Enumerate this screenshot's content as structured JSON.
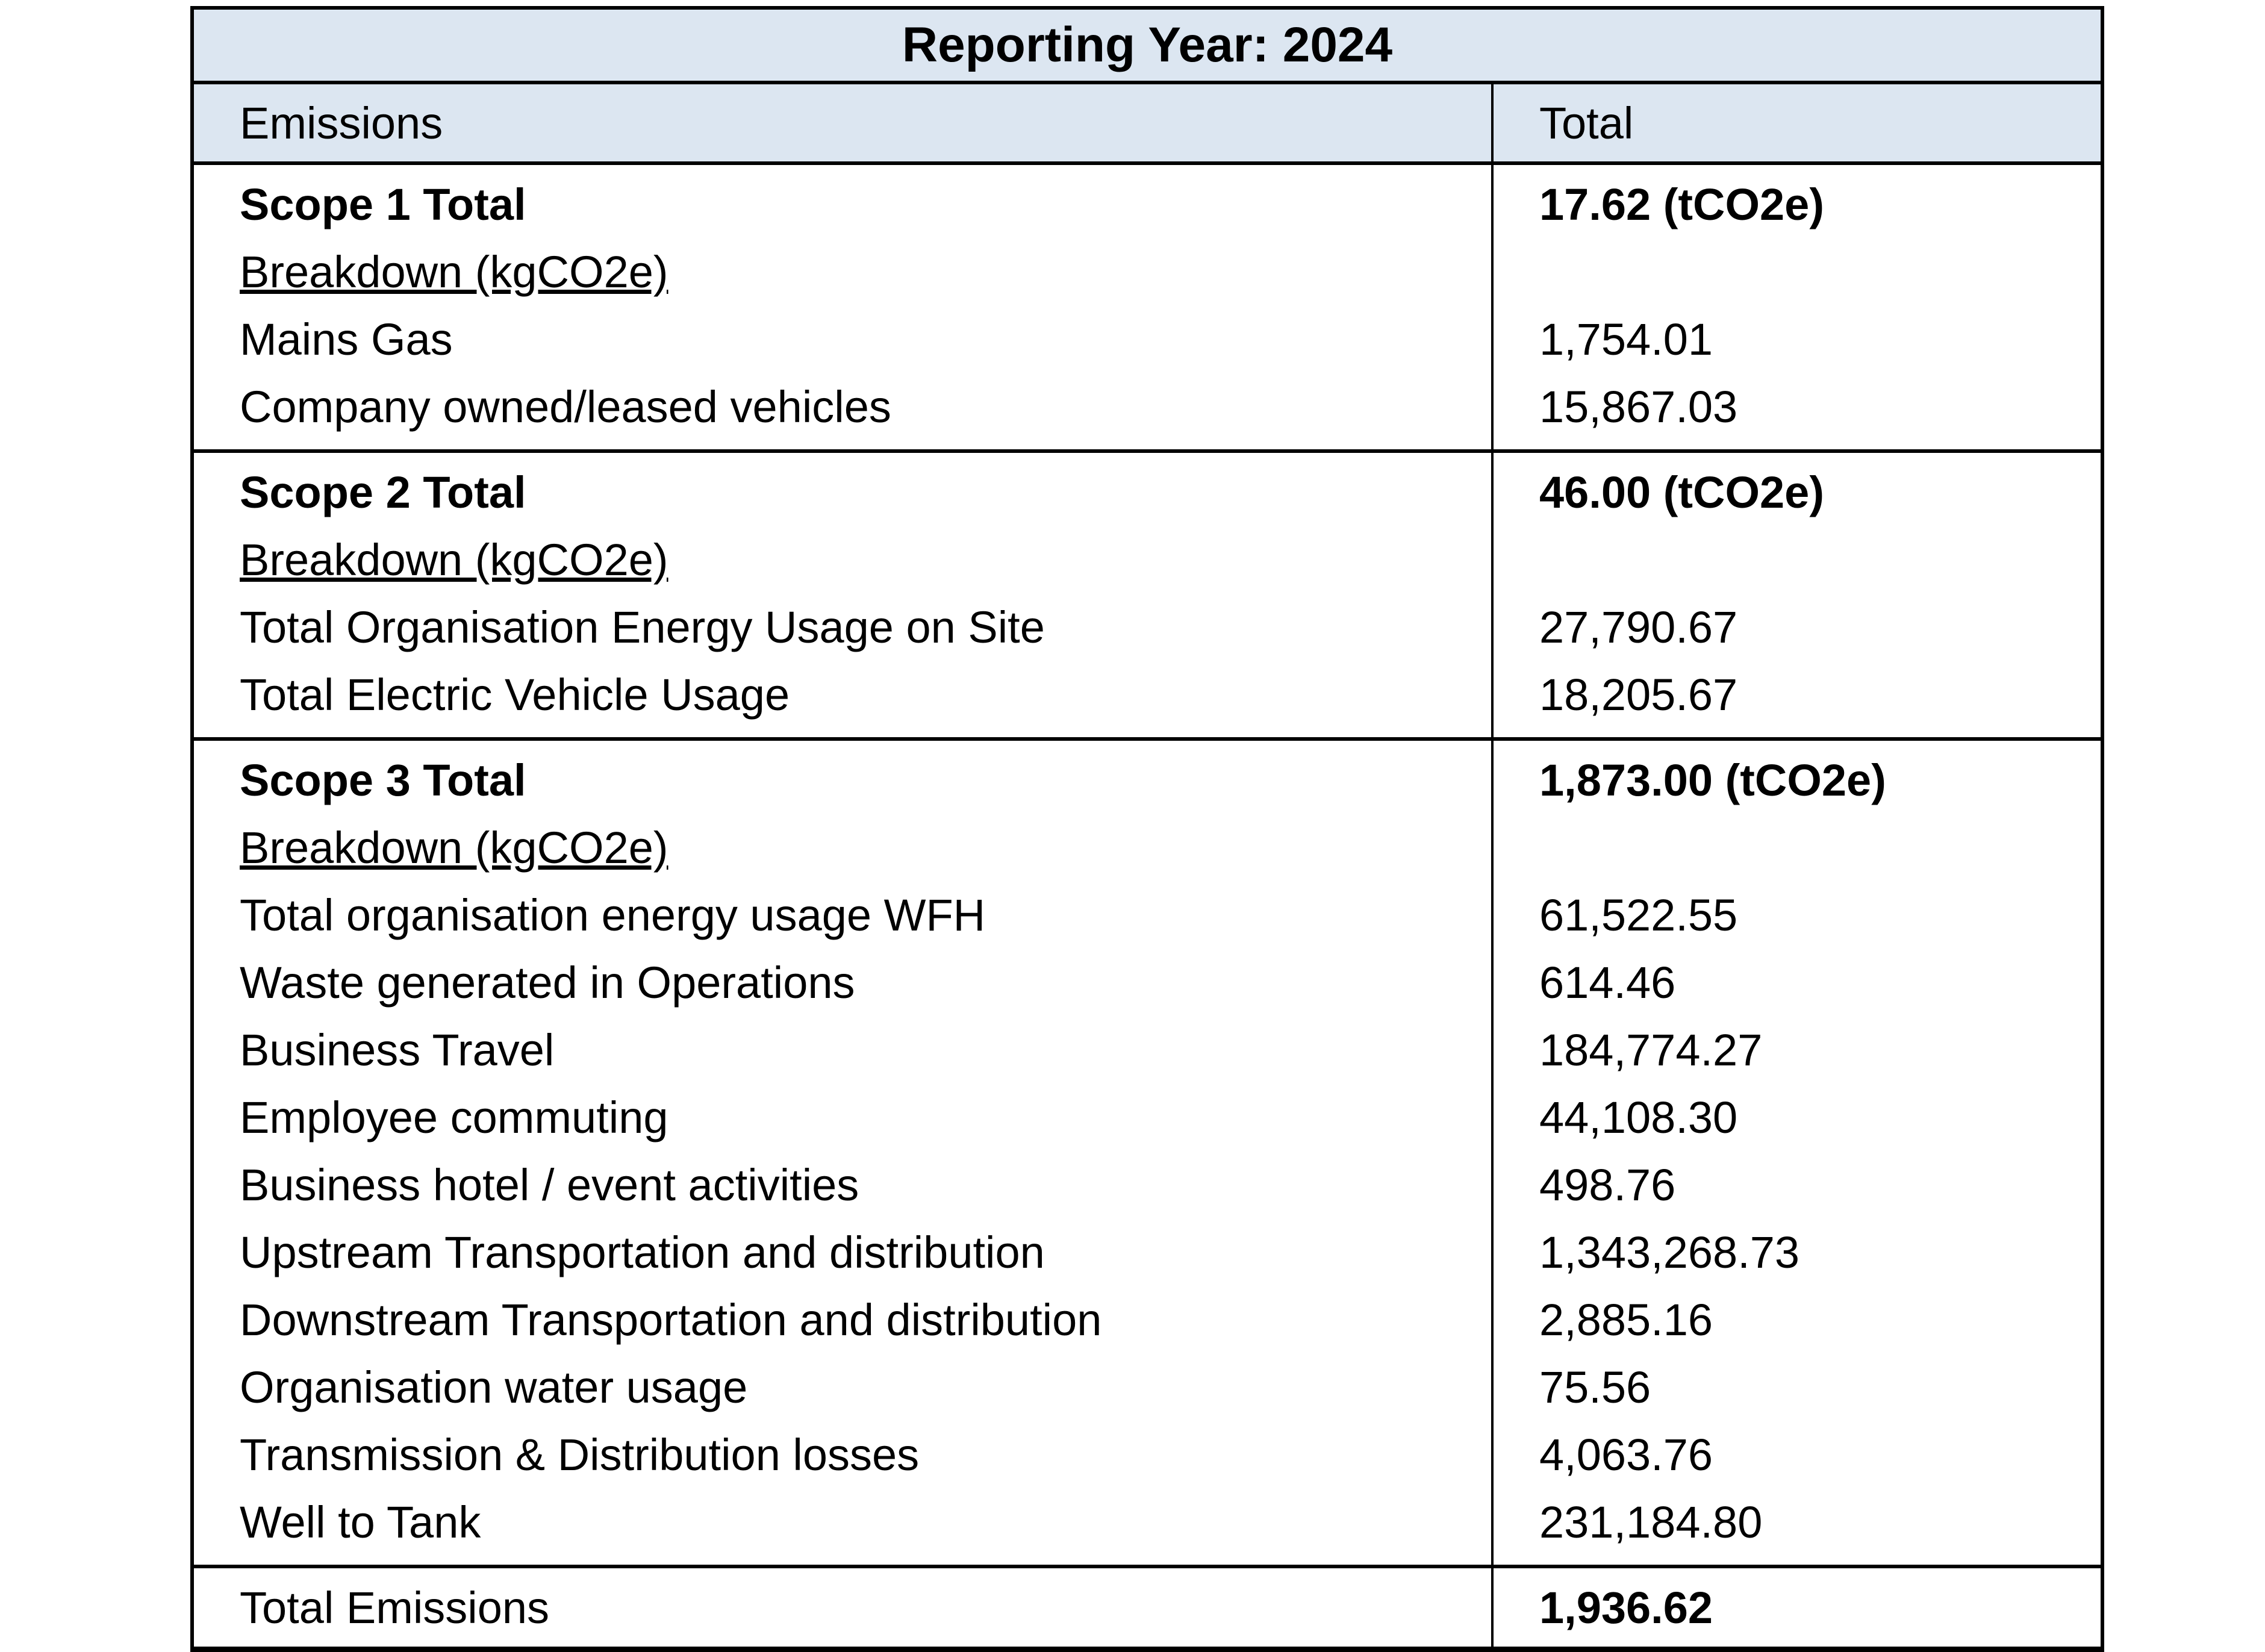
{
  "table": {
    "title": "Reporting Year: 2024",
    "columns": {
      "emissions": "Emissions",
      "total": "Total"
    },
    "colors": {
      "header_bg": "#dce6f1",
      "border": "#000000",
      "text": "#000000"
    },
    "sections": [
      {
        "name": "Scope 1",
        "rows": [
          {
            "label": "Scope 1 Total",
            "value": "17.62 (tCO2e)"
          },
          {
            "label": "Breakdown (kgCO2e)",
            "value": ""
          },
          {
            "label": "Mains Gas",
            "value": "1,754.01"
          },
          {
            "label": "Company owned/leased vehicles",
            "value": "15,867.03"
          }
        ]
      },
      {
        "name": "Scope 2",
        "rows": [
          {
            "label": "Scope 2 Total",
            "value": "46.00 (tCO2e)"
          },
          {
            "label": "Breakdown (kgCO2e)",
            "value": ""
          },
          {
            "label": "Total Organisation Energy Usage on Site",
            "value": "27,790.67"
          },
          {
            "label": "Total Electric Vehicle Usage",
            "value": "18,205.67"
          }
        ]
      },
      {
        "name": "Scope 3",
        "rows": [
          {
            "label": "Scope 3 Total",
            "value": "1,873.00 (tCO2e)"
          },
          {
            "label": "Breakdown (kgCO2e)",
            "value": ""
          },
          {
            "label": "Total organisation energy usage WFH",
            "value": "61,522.55"
          },
          {
            "label": "Waste generated in Operations",
            "value": "614.46"
          },
          {
            "label": "Business Travel",
            "value": "184,774.27"
          },
          {
            "label": "Employee commuting",
            "value": "44,108.30"
          },
          {
            "label": "Business hotel / event activities",
            "value": "498.76"
          },
          {
            "label": "Upstream Transportation and distribution",
            "value": "1,343,268.73"
          },
          {
            "label": "Downstream Transportation and distribution",
            "value": "2,885.16"
          },
          {
            "label": "Organisation water usage",
            "value": "75.56"
          },
          {
            "label": "Transmission & Distribution losses",
            "value": "4,063.76"
          },
          {
            "label": "Well to Tank",
            "value": "231,184.80"
          }
        ]
      }
    ],
    "footer": {
      "label": "Total Emissions",
      "value": "1,936.62"
    }
  }
}
